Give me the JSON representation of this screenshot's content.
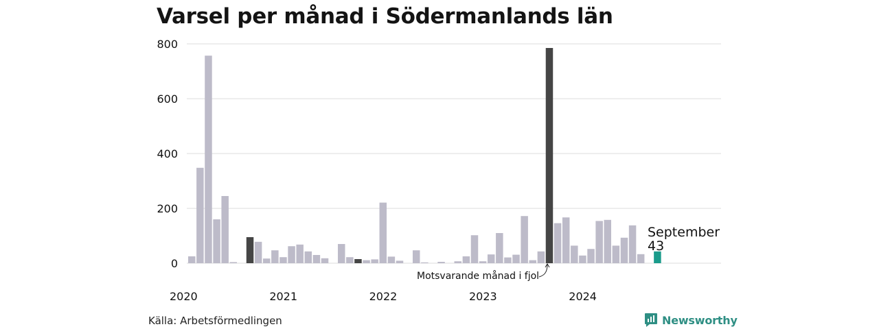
{
  "title": "Varsel per månad i Södermanlands län",
  "source": "Källa: Arbetsförmedlingen",
  "brand": {
    "name": "Newsworthy",
    "icon": "newsworthy-logo-icon"
  },
  "colors": {
    "default_bar": "#bdbbc9",
    "comparison_bar": "#454545",
    "highlight_bar": "#1a9b8b",
    "gridline": "#dcdcdc",
    "brand": "#2f8f84"
  },
  "annotations": {
    "comparison": "Motsvarande månad i fjol",
    "latest_month": "September",
    "latest_value": "43"
  },
  "chart_data": {
    "type": "bar",
    "title": "Varsel per månad i Södermanlands län",
    "xlabel": "",
    "ylabel": "",
    "ylim": [
      0,
      800
    ],
    "yticks": [
      0,
      200,
      400,
      600,
      800
    ],
    "grid": true,
    "x_tick_labels": [
      "2020",
      "2021",
      "2022",
      "2023",
      "2024"
    ],
    "categories": [
      "2020-01",
      "2020-02",
      "2020-03",
      "2020-04",
      "2020-05",
      "2020-06",
      "2020-07",
      "2020-08",
      "2020-09",
      "2020-10",
      "2020-11",
      "2020-12",
      "2021-01",
      "2021-02",
      "2021-03",
      "2021-04",
      "2021-05",
      "2021-06",
      "2021-07",
      "2021-08",
      "2021-09",
      "2021-10",
      "2021-11",
      "2021-12",
      "2022-01",
      "2022-02",
      "2022-03",
      "2022-04",
      "2022-05",
      "2022-06",
      "2022-07",
      "2022-08",
      "2022-09",
      "2022-10",
      "2022-11",
      "2022-12",
      "2023-01",
      "2023-02",
      "2023-03",
      "2023-04",
      "2023-05",
      "2023-06",
      "2023-07",
      "2023-08",
      "2023-09",
      "2023-10",
      "2023-11",
      "2023-12",
      "2024-01",
      "2024-02",
      "2024-03",
      "2024-04",
      "2024-05",
      "2024-06",
      "2024-07",
      "2024-08",
      "2024-09"
    ],
    "values": [
      25,
      348,
      757,
      160,
      245,
      4,
      0,
      95,
      78,
      17,
      47,
      22,
      62,
      68,
      43,
      30,
      18,
      0,
      70,
      22,
      15,
      11,
      14,
      221,
      24,
      9,
      0,
      47,
      3,
      0,
      5,
      0,
      7,
      25,
      102,
      7,
      32,
      110,
      21,
      31,
      172,
      11,
      43,
      785,
      146,
      167,
      64,
      28,
      52,
      154,
      158,
      64,
      93,
      138,
      33,
      0,
      43
    ],
    "comparison_index": [
      7,
      20,
      43
    ],
    "highlight_index": 56
  }
}
